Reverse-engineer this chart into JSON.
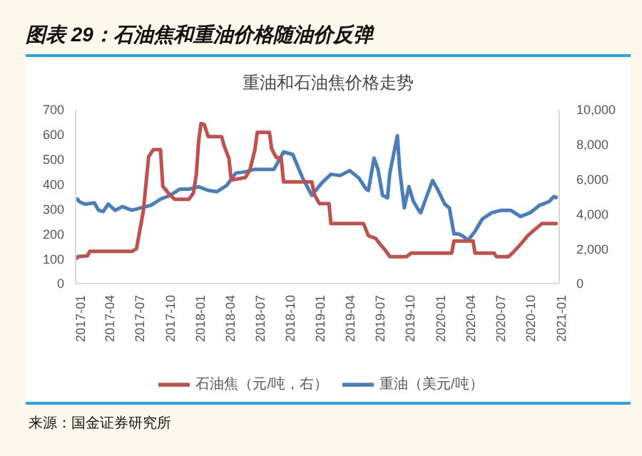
{
  "chart_data": {
    "type": "line",
    "title": "图表 29：石油焦和重油价格随油价反弹",
    "subtitle": "重油和石油焦价格走势",
    "annotations": [
      "来源：国金证券研究所"
    ],
    "xlim": [
      "2017-01-01",
      "2021-01-10"
    ],
    "xticks": [
      "2017-01",
      "2017-04",
      "2017-07",
      "2017-10",
      "2018-01",
      "2018-04",
      "2018-07",
      "2018-10",
      "2019-01",
      "2019-04",
      "2019-07",
      "2019-10",
      "2020-01",
      "2020-04",
      "2020-07",
      "2020-10",
      "2021-01"
    ],
    "ylim": [
      0,
      700
    ],
    "yticks": [
      0,
      100,
      200,
      300,
      400,
      500,
      600,
      700
    ],
    "y2lim": [
      0,
      10000
    ],
    "y2ticks": [
      0,
      {
        "value": 2000,
        "label": "2,000"
      },
      {
        "value": 4000,
        "label": "4,000"
      },
      {
        "value": 6000,
        "label": "6,000"
      },
      {
        "value": 8000,
        "label": "8,000"
      },
      {
        "value": 10000,
        "label": "10,000"
      }
    ],
    "grid": false,
    "legend": "bottom",
    "marker": "none",
    "line_style": "solid",
    "series": [
      {
        "name": "重油（美元/吨）",
        "color": "#4a7ebb",
        "x": [
          "2017-01-04",
          "2017-01-12",
          "2017-01-29",
          "2017-02-27",
          "2017-03-12",
          "2017-03-26",
          "2017-04-10",
          "2017-05-01",
          "2017-05-23",
          "2017-06-21",
          "2017-07-19",
          "2017-08-18",
          "2017-09-16",
          "2017-10-15",
          "2017-11-13",
          "2017-12-11",
          "2018-01-10",
          "2018-02-08",
          "2018-03-06",
          "2018-04-05",
          "2018-05-03",
          "2018-06-01",
          "2018-06-30",
          "2018-07-28",
          "2018-08-27",
          "2018-09-25",
          "2018-10-23",
          "2018-11-22",
          "2018-12-20",
          "2019-01-19",
          "2019-02-16",
          "2019-03-16",
          "2019-04-14",
          "2019-05-12",
          "2019-06-03",
          "2019-06-10",
          "2019-06-27",
          "2019-07-09",
          "2019-07-23",
          "2019-08-07",
          "2019-08-14",
          "2019-09-06",
          "2019-09-13",
          "2019-09-27",
          "2019-10-11",
          "2019-10-25",
          "2019-11-10",
          "2019-11-16",
          "2019-12-01",
          "2019-12-22",
          "2020-01-06",
          "2020-01-28",
          "2020-02-11",
          "2020-02-25",
          "2020-03-10",
          "2020-03-24",
          "2020-04-08",
          "2020-04-29",
          "2020-05-21",
          "2020-06-19",
          "2020-07-18",
          "2020-08-16",
          "2020-09-14",
          "2020-10-13",
          "2020-11-11",
          "2020-12-10",
          "2020-12-24",
          "2021-01-05"
        ],
        "values": [
          345,
          330,
          320,
          325,
          295,
          290,
          320,
          295,
          310,
          295,
          305,
          315,
          340,
          355,
          380,
          380,
          390,
          375,
          370,
          395,
          445,
          450,
          460,
          460,
          460,
          530,
          520,
          425,
          355,
          405,
          440,
          435,
          455,
          425,
          380,
          375,
          505,
          460,
          355,
          345,
          445,
          595,
          460,
          305,
          390,
          330,
          295,
          285,
          340,
          415,
          380,
          320,
          305,
          200,
          200,
          190,
          175,
          210,
          260,
          285,
          295,
          295,
          270,
          285,
          315,
          330,
          350,
          345
        ]
      },
      {
        "name": "石油焦（元/吨，右）",
        "color": "#c0504d",
        "axis": "y2",
        "x": [
          "2017-01-01",
          "2017-01-08",
          "2017-02-06",
          "2017-02-13",
          "2017-06-21",
          "2017-07-05",
          "2017-07-19",
          "2017-07-26",
          "2017-08-11",
          "2017-08-25",
          "2017-09-16",
          "2017-09-23",
          "2017-10-15",
          "2017-10-29",
          "2017-12-11",
          "2017-12-25",
          "2018-01-03",
          "2018-01-10",
          "2018-01-17",
          "2018-01-27",
          "2018-02-08",
          "2018-03-21",
          "2018-03-28",
          "2018-04-12",
          "2018-04-19",
          "2018-06-01",
          "2018-06-15",
          "2018-06-30",
          "2018-07-07",
          "2018-08-13",
          "2018-08-20",
          "2018-09-03",
          "2018-09-18",
          "2018-09-25",
          "2018-12-20",
          "2018-12-28",
          "2019-01-12",
          "2019-02-10",
          "2019-02-16",
          "2019-05-26",
          "2019-06-10",
          "2019-07-02",
          "2019-07-16",
          "2019-07-30",
          "2019-08-14",
          "2019-10-04",
          "2019-10-18",
          "2020-02-18",
          "2020-02-25",
          "2020-04-23",
          "2020-04-29",
          "2020-06-26",
          "2020-07-03",
          "2020-08-09",
          "2020-08-23",
          "2020-09-14",
          "2020-10-06",
          "2020-10-27",
          "2020-11-18",
          "2021-01-05"
        ],
        "values": [
          1400,
          1550,
          1600,
          1850,
          1850,
          2000,
          3450,
          4200,
          7300,
          7700,
          7700,
          5600,
          5100,
          4850,
          4850,
          5200,
          6300,
          8200,
          9200,
          9150,
          8450,
          8450,
          7950,
          7200,
          5950,
          6100,
          6550,
          7700,
          8700,
          8700,
          7750,
          7250,
          7200,
          5850,
          5850,
          5100,
          4600,
          4600,
          3450,
          3450,
          2750,
          2600,
          2250,
          1950,
          1550,
          1550,
          1750,
          1750,
          2450,
          2450,
          1750,
          1750,
          1550,
          1550,
          1800,
          2250,
          2750,
          3100,
          3450,
          3450
        ]
      }
    ]
  }
}
